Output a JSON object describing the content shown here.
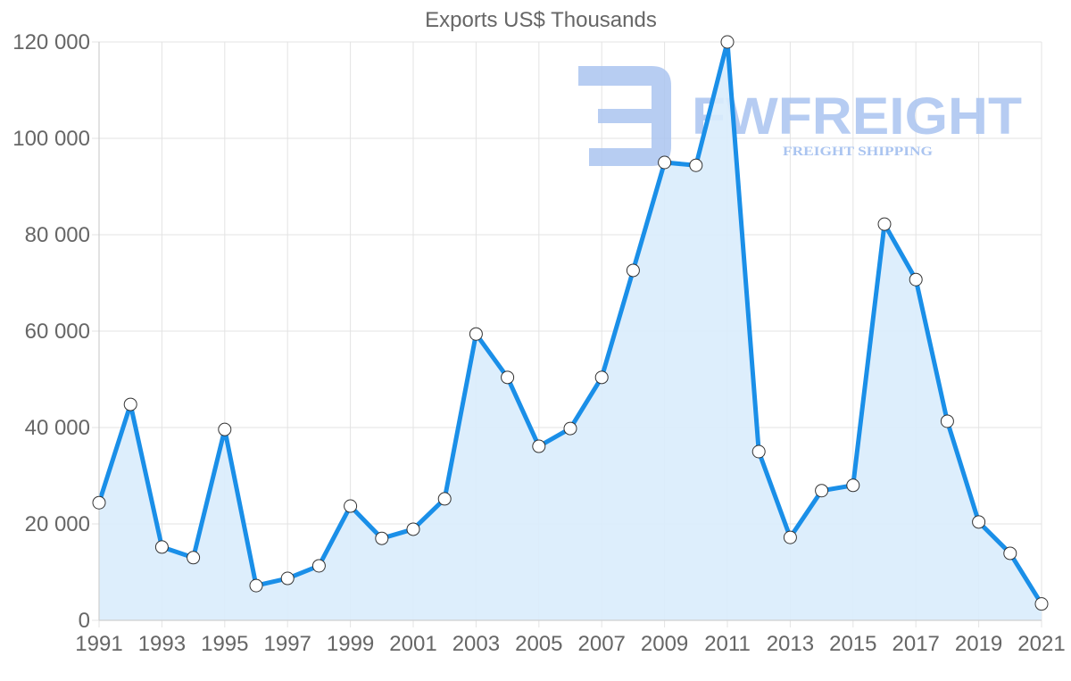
{
  "chart_data": {
    "type": "area",
    "title": "Exports US$ Thousands",
    "xlabel": "",
    "ylabel": "",
    "ylim": [
      0,
      120000
    ],
    "y_ticks": [
      0,
      20000,
      40000,
      60000,
      80000,
      100000,
      120000
    ],
    "y_tick_labels": [
      "0",
      "20 000",
      "40 000",
      "60 000",
      "80 000",
      "100 000",
      "120 000"
    ],
    "x_tick_labels": [
      "1991",
      "1993",
      "1995",
      "1997",
      "1999",
      "2001",
      "2003",
      "2005",
      "2007",
      "2009",
      "2011",
      "2013",
      "2015",
      "2017",
      "2019",
      "2021"
    ],
    "grid": true,
    "legend": null,
    "categories": [
      "1991",
      "1992",
      "1993",
      "1994",
      "1995",
      "1996",
      "1997",
      "1998",
      "1999",
      "2000",
      "2001",
      "2002",
      "2003",
      "2004",
      "2005",
      "2006",
      "2007",
      "2008",
      "2009",
      "2010",
      "2011",
      "2012",
      "2013",
      "2014",
      "2015",
      "2016",
      "2017",
      "2018",
      "2019",
      "2020",
      "2021"
    ],
    "series": [
      {
        "name": "Exports US$ Thousands",
        "values": [
          24400,
          44800,
          15200,
          13000,
          39600,
          7200,
          8700,
          11300,
          23700,
          17000,
          18900,
          25200,
          59400,
          50400,
          36100,
          39800,
          50400,
          72600,
          95000,
          94400,
          120000,
          35000,
          17200,
          26900,
          28000,
          82200,
          70700,
          41300,
          20400,
          13900,
          3400
        ]
      }
    ],
    "colors": {
      "line": "#1a8fe8",
      "fill": "#d9ecfc",
      "point_fill": "#ffffff",
      "point_stroke": "#333333"
    }
  },
  "watermark": {
    "brand": "FWFREIGHT",
    "tagline": "FREIGHT SHIPPING",
    "color": "#aac4f0"
  }
}
